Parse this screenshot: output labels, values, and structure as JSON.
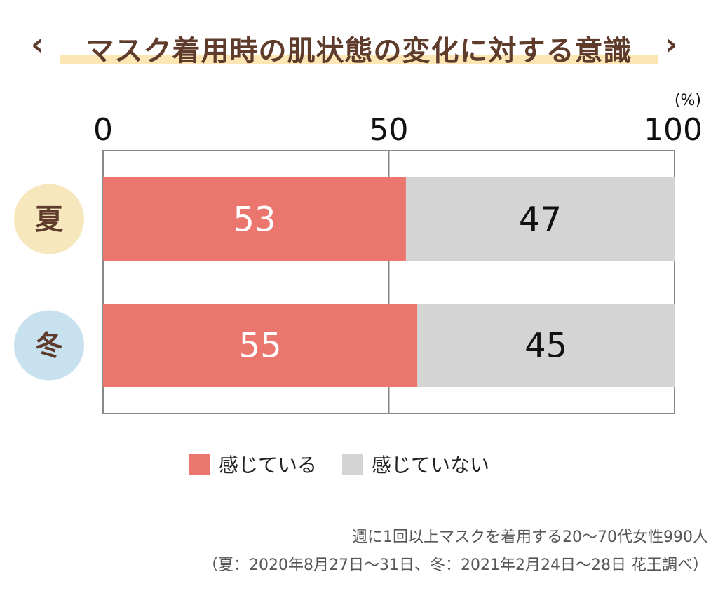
{
  "title": "マスク着用時の肌状態の変化に対する意識",
  "title_left_mark": "‹",
  "title_right_mark": "›",
  "colors": {
    "title": "#5e3b2b",
    "highlight": "#fbe6b4",
    "feel": "#ea766e",
    "not_feel": "#d4d4d4",
    "summer_circle": "#f7e7bd",
    "winter_circle": "#c7e1ee",
    "axis_frame": "#888888"
  },
  "chart_data": {
    "type": "bar",
    "orientation": "horizontal",
    "stacked": true,
    "unit": "(%)",
    "xlim": [
      0,
      100
    ],
    "x_ticks": [
      "0",
      "50",
      "100"
    ],
    "categories": [
      "夏",
      "冬"
    ],
    "series": [
      {
        "name": "感じている",
        "values": [
          53,
          55
        ]
      },
      {
        "name": "感じていない",
        "values": [
          47,
          45
        ]
      }
    ],
    "legend": "bottom-center",
    "grid": true
  },
  "notes": [
    "週に1回以上マスクを着用する20〜70代女性990人",
    "（夏：2020年8月27日〜31日、冬：2021年2月24日〜28日 花王調べ）"
  ]
}
